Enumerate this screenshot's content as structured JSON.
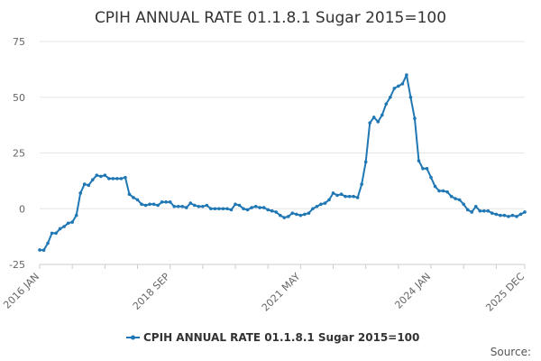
{
  "chart_data": {
    "type": "line",
    "title": "CPIH ANNUAL RATE 01.1.8.1 Sugar 2015=100",
    "xlabel": "",
    "ylabel": "",
    "ylim": [
      -25,
      75
    ],
    "yticks": [
      -25,
      0,
      25,
      50,
      75
    ],
    "x_tick_labels": [
      "2016 JAN",
      "2018 SEP",
      "2021 MAY",
      "2024 JAN",
      "2025 DEC"
    ],
    "x_tick_months": [
      0,
      32,
      64,
      96,
      119
    ],
    "grid": "horizontal",
    "legend_position": "bottom",
    "colors": {
      "series": "#1f77b4",
      "grid": "#e6e6e6",
      "axis": "#cccccc"
    },
    "series": [
      {
        "name": "CPIH ANNUAL RATE 01.1.8.1 Sugar 2015=100",
        "start": "2016 JAN",
        "frequency": "monthly",
        "values": [
          -18.5,
          -18.6,
          -15.5,
          -11,
          -11,
          -9,
          -8,
          -6.5,
          -6,
          -3,
          7,
          11,
          10.5,
          13,
          15,
          14.5,
          15,
          13.5,
          13.5,
          13.5,
          13.5,
          14,
          6.5,
          5,
          4,
          2,
          1.5,
          2,
          2,
          1.5,
          3,
          3,
          3,
          1,
          1,
          1,
          0.5,
          2.5,
          1.5,
          1,
          1,
          1.5,
          0,
          0,
          0,
          0,
          0,
          -0.5,
          2,
          1.5,
          0,
          -0.5,
          0.5,
          1,
          0.5,
          0.5,
          -0.5,
          -1,
          -1.5,
          -3,
          -4,
          -3.5,
          -2,
          -2.5,
          -3,
          -2.5,
          -2,
          0,
          1,
          2,
          2.5,
          4,
          7,
          6,
          6.5,
          5.5,
          5.5,
          5.5,
          5,
          11,
          21,
          38.5,
          41,
          39,
          42,
          47,
          50,
          54,
          55,
          56,
          60,
          50,
          40.5,
          21.5,
          18,
          18,
          14,
          10,
          8,
          8,
          7.5,
          5.5,
          4.5,
          4,
          2,
          -0.5,
          -1.5,
          1,
          -1,
          -1,
          -1,
          -2,
          -2.5,
          -3,
          -3,
          -3.5,
          -3,
          -3.5,
          -2.5,
          -1.5
        ]
      }
    ]
  },
  "source_label": "Source:"
}
